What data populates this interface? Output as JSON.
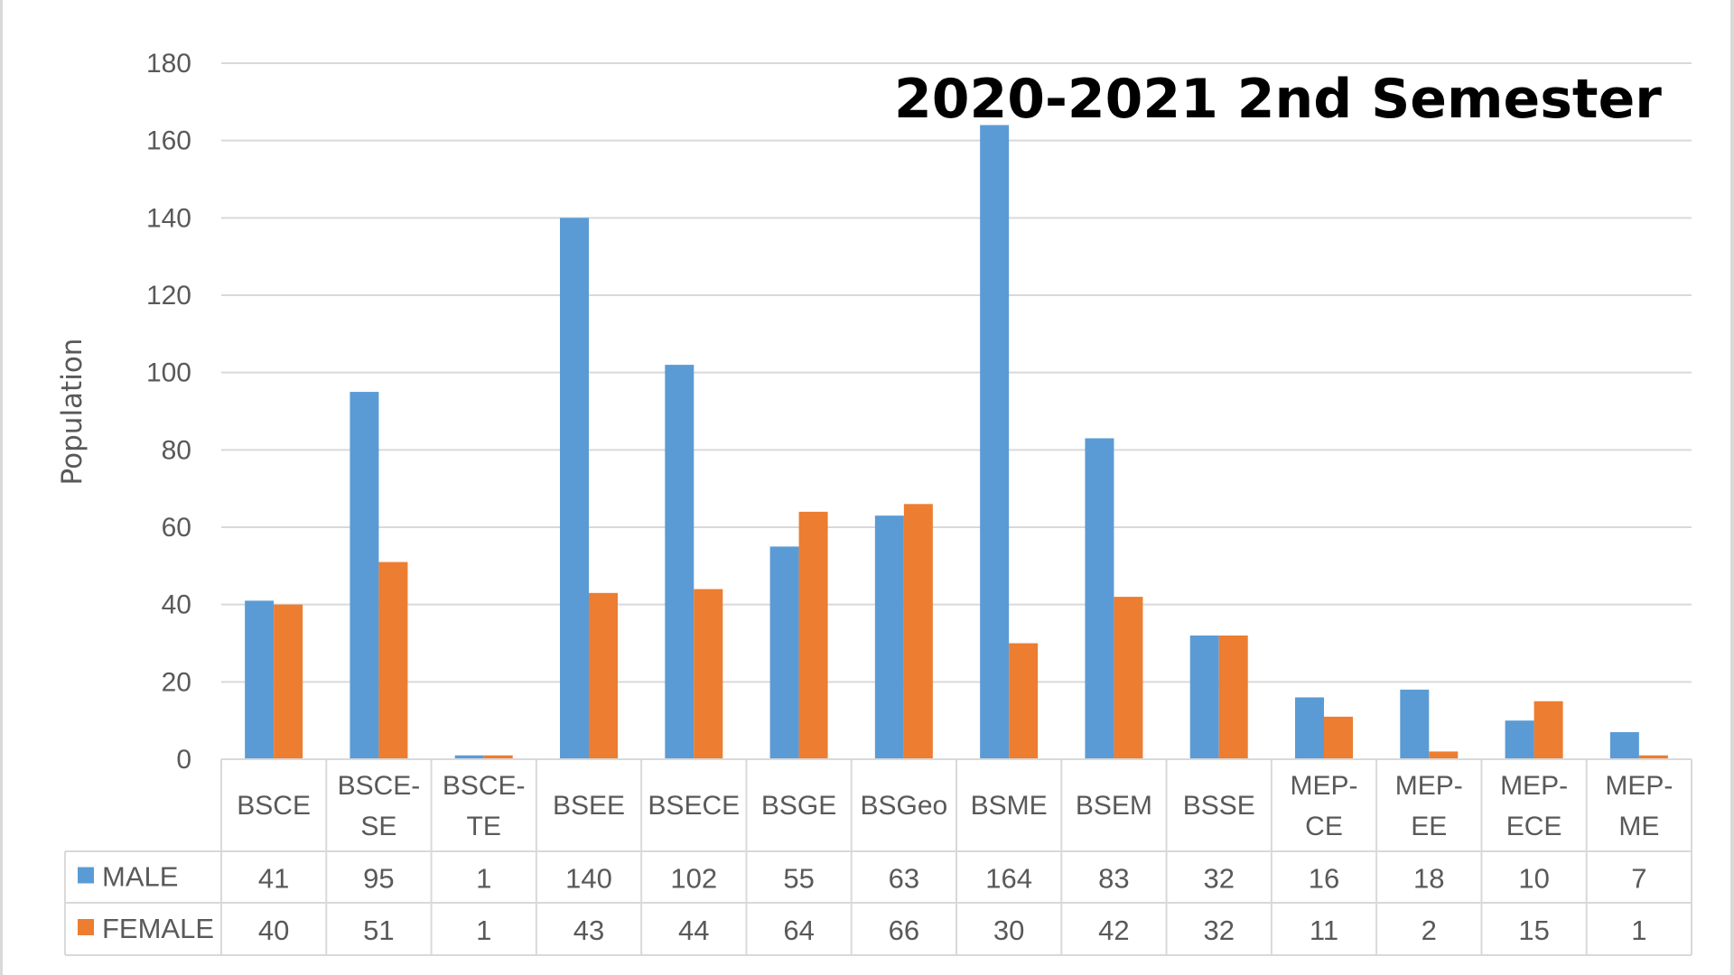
{
  "chart_data": {
    "type": "bar",
    "title": "2020-2021 2nd Semester",
    "xlabel": "",
    "ylabel": "Population",
    "ylim": [
      0,
      180
    ],
    "yticks": [
      0,
      20,
      40,
      60,
      80,
      100,
      120,
      140,
      160,
      180
    ],
    "grid": true,
    "legend": "data-table",
    "categories": [
      "BSCE",
      "BSCE-SE",
      "BSCE-TE",
      "BSEE",
      "BSECE",
      "BSGE",
      "BSGeo",
      "BSME",
      "BSEM",
      "BSSE",
      "MEP-CE",
      "MEP-EE",
      "MEP-ECE",
      "MEP-ME"
    ],
    "category_lines": [
      [
        "BSCE"
      ],
      [
        "BSCE-",
        "SE"
      ],
      [
        "BSCE-",
        "TE"
      ],
      [
        "BSEE"
      ],
      [
        "BSECE"
      ],
      [
        "BSGE"
      ],
      [
        "BSGeo"
      ],
      [
        "BSME"
      ],
      [
        "BSEM"
      ],
      [
        "BSSE"
      ],
      [
        "MEP-",
        "CE"
      ],
      [
        "MEP-",
        "EE"
      ],
      [
        "MEP-",
        "ECE"
      ],
      [
        "MEP-",
        "ME"
      ]
    ],
    "series": [
      {
        "name": "MALE",
        "color": "#5b9bd5",
        "values": [
          41,
          95,
          1,
          140,
          102,
          55,
          63,
          164,
          83,
          32,
          16,
          18,
          10,
          7
        ]
      },
      {
        "name": "FEMALE",
        "color": "#ed7d31",
        "values": [
          40,
          51,
          1,
          43,
          44,
          64,
          66,
          30,
          42,
          32,
          11,
          2,
          15,
          1
        ]
      }
    ]
  }
}
